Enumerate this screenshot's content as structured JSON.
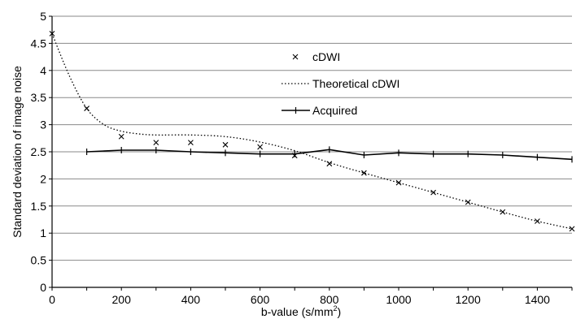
{
  "chart_data": {
    "type": "line",
    "title": "",
    "xlabel": "b-value (s/mm",
    "xlabel_sup": "2",
    "xlabel_end": ")",
    "ylabel": "Standard deviation of image noise",
    "xlim": [
      0,
      1500
    ],
    "ylim": [
      0,
      5
    ],
    "grid": "horizontal",
    "x_ticks": [
      0,
      200,
      400,
      600,
      800,
      1000,
      1200,
      1400
    ],
    "y_ticks": [
      0,
      0.5,
      1,
      1.5,
      2,
      2.5,
      3,
      3.5,
      4,
      4.5,
      5
    ],
    "x_tick_labels": [
      "0",
      "200",
      "400",
      "600",
      "800",
      "1000",
      "1200",
      "1400"
    ],
    "y_tick_labels": [
      "0",
      "0.5",
      "1",
      "1.5",
      "2",
      "2.5",
      "3",
      "3.5",
      "4",
      "4.5",
      "5"
    ],
    "legend_position": "upper-middle",
    "series": [
      {
        "name": "cDWI",
        "style": "markers-x",
        "x": [
          0,
          100,
          200,
          300,
          400,
          500,
          600,
          700,
          800,
          900,
          1000,
          1100,
          1200,
          1300,
          1400,
          1500
        ],
        "values": [
          4.68,
          3.3,
          2.78,
          2.67,
          2.67,
          2.63,
          2.59,
          2.43,
          2.28,
          2.11,
          1.93,
          1.75,
          1.57,
          1.39,
          1.22,
          1.08
        ]
      },
      {
        "name": "Theoretical cDWI",
        "style": "dotted",
        "x": [
          0,
          50,
          100,
          150,
          200,
          250,
          300,
          400,
          500,
          600,
          700,
          800,
          900,
          1000,
          1100,
          1200,
          1300,
          1400,
          1500
        ],
        "values": [
          4.68,
          3.9,
          3.3,
          3.0,
          2.88,
          2.83,
          2.81,
          2.81,
          2.78,
          2.68,
          2.52,
          2.3,
          2.11,
          1.93,
          1.75,
          1.57,
          1.39,
          1.22,
          1.08
        ]
      },
      {
        "name": "Acquired",
        "style": "solid-plus",
        "x": [
          100,
          200,
          300,
          400,
          500,
          600,
          700,
          800,
          900,
          1000,
          1100,
          1200,
          1300,
          1400,
          1500
        ],
        "values": [
          2.5,
          2.53,
          2.53,
          2.5,
          2.48,
          2.46,
          2.46,
          2.54,
          2.44,
          2.48,
          2.46,
          2.46,
          2.44,
          2.4,
          2.36
        ]
      }
    ]
  }
}
